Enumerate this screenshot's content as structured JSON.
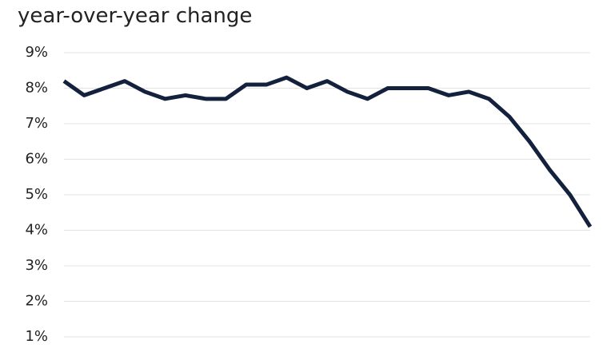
{
  "chart_data": {
    "type": "line",
    "title": "year-over-year change",
    "categories": [
      null,
      null,
      null,
      null,
      null,
      null,
      null,
      null,
      null,
      null,
      null,
      null,
      null,
      null,
      null,
      null,
      null,
      null,
      null,
      null,
      null,
      null,
      null,
      null,
      null,
      null,
      null
    ],
    "values": [
      8.2,
      7.8,
      8.0,
      8.2,
      7.9,
      7.7,
      7.8,
      7.7,
      7.7,
      8.1,
      8.1,
      8.3,
      8.0,
      8.2,
      7.9,
      7.7,
      8.0,
      8.0,
      8.0,
      7.8,
      7.9,
      7.7,
      7.2,
      6.5,
      5.7,
      5.0,
      4.1
    ],
    "color": "#14213d",
    "ylim": [
      1,
      9
    ],
    "yticks": [
      {
        "value": 1,
        "label": "1%"
      },
      {
        "value": 2,
        "label": "2%"
      },
      {
        "value": 3,
        "label": "3%"
      },
      {
        "value": 4,
        "label": "4%"
      },
      {
        "value": 5,
        "label": "5%"
      },
      {
        "value": 6,
        "label": "6%"
      },
      {
        "value": 7,
        "label": "7%"
      },
      {
        "value": 8,
        "label": "8%"
      },
      {
        "value": 9,
        "label": "9%"
      }
    ],
    "grid": true
  }
}
